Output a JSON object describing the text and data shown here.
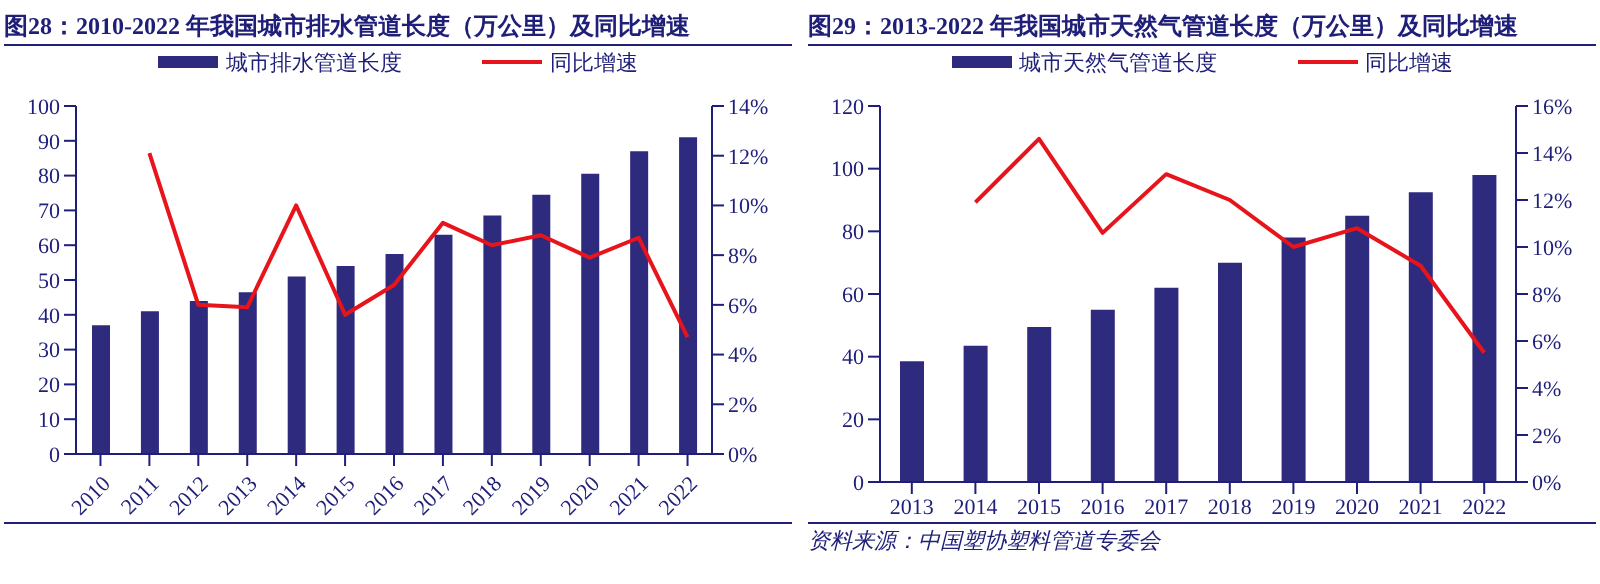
{
  "chart_data": [
    {
      "type": "bar",
      "title": "图28：2010-2022 年我国城市排水管道长度（万公里）及同比增速",
      "categories": [
        "2010",
        "2011",
        "2012",
        "2013",
        "2014",
        "2015",
        "2016",
        "2017",
        "2018",
        "2019",
        "2020",
        "2021",
        "2022"
      ],
      "series": [
        {
          "name": "城市排水管道长度",
          "color": "#2e2a7e",
          "values": [
            37,
            41,
            44,
            46.5,
            51,
            54,
            57.5,
            63,
            68.5,
            74.5,
            80.5,
            87,
            91
          ]
        },
        {
          "name": "同比增速",
          "type": "line",
          "axis": "y2",
          "color": "#e8141b",
          "values": [
            null,
            12.1,
            6.0,
            5.9,
            10.0,
            5.6,
            6.8,
            9.3,
            8.4,
            8.8,
            7.9,
            8.7,
            4.7
          ]
        }
      ],
      "ylim": [
        0,
        100
      ],
      "yticks": [
        0,
        10,
        20,
        30,
        40,
        50,
        60,
        70,
        80,
        90,
        100
      ],
      "y2lim": [
        0,
        14
      ],
      "y2ticks": [
        {
          "value": 0,
          "label": "0%"
        },
        {
          "value": 2,
          "label": "2%"
        },
        {
          "value": 4,
          "label": "4%"
        },
        {
          "value": 6,
          "label": "6%"
        },
        {
          "value": 8,
          "label": "8%"
        },
        {
          "value": 10,
          "label": "10%"
        },
        {
          "value": 12,
          "label": "12%"
        },
        {
          "value": 14,
          "label": "14%"
        }
      ],
      "legend": "top",
      "marker": "none",
      "line_style": "solid",
      "grid": false
    },
    {
      "type": "bar",
      "title": "图29：2013-2022 年我国城市天然气管道长度（万公里）及同比增速",
      "categories": [
        "2013",
        "2014",
        "2015",
        "2016",
        "2017",
        "2018",
        "2019",
        "2020",
        "2021",
        "2022"
      ],
      "series": [
        {
          "name": "城市天然气管道长度",
          "color": "#2e2a7e",
          "values": [
            38.5,
            43.5,
            49.5,
            55,
            62,
            70,
            78,
            85,
            92.5,
            98
          ]
        },
        {
          "name": "同比增速",
          "type": "line",
          "axis": "y2",
          "color": "#e8141b",
          "values": [
            null,
            11.9,
            14.6,
            10.6,
            13.1,
            12.0,
            10.0,
            10.8,
            9.2,
            5.5
          ]
        }
      ],
      "ylim": [
        0,
        120
      ],
      "yticks": [
        0,
        20,
        40,
        60,
        80,
        100,
        120
      ],
      "y2lim": [
        0,
        16
      ],
      "y2ticks": [
        {
          "value": 0,
          "label": "0%"
        },
        {
          "value": 2,
          "label": "2%"
        },
        {
          "value": 4,
          "label": "4%"
        },
        {
          "value": 6,
          "label": "6%"
        },
        {
          "value": 8,
          "label": "8%"
        },
        {
          "value": 10,
          "label": "10%"
        },
        {
          "value": 12,
          "label": "12%"
        },
        {
          "value": 14,
          "label": "14%"
        },
        {
          "value": 16,
          "label": "16%"
        }
      ],
      "legend": "top",
      "marker": "none",
      "line_style": "solid",
      "grid": false,
      "annotations": [
        "资料来源：中国塑协塑料管道专委会"
      ]
    }
  ]
}
